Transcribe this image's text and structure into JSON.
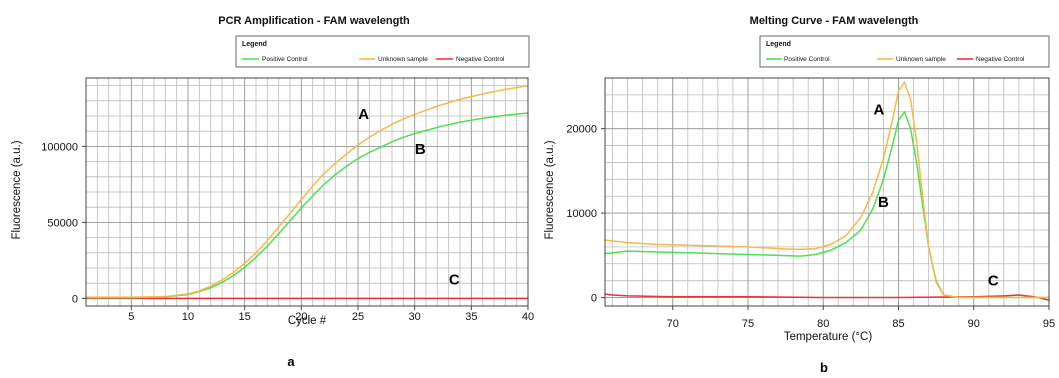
{
  "colors": {
    "positive": "#4fe04f",
    "unknown": "#f7b94a",
    "negative": "#e8333a"
  },
  "chart_data": [
    {
      "type": "line",
      "panel_label": "a",
      "title": "PCR Amplification - FAM wavelength",
      "xlabel": "Cycle #",
      "ylabel": "Fluorescence (a.u.)",
      "xlim": [
        1,
        40
      ],
      "ylim": [
        -5000,
        145000
      ],
      "xticks": [
        5,
        10,
        15,
        20,
        25,
        30,
        35,
        40
      ],
      "yticks": [
        0,
        50000,
        100000
      ],
      "ytick_labels": [
        "0",
        "50000",
        "100000"
      ],
      "grid": true,
      "legend": {
        "title": "Legend",
        "placement": "top",
        "entries": [
          "Positive Control",
          "Unknown sample",
          "Negative Control"
        ]
      },
      "annotations": [
        {
          "text": "A",
          "x": 25.5,
          "y": 118000
        },
        {
          "text": "B",
          "x": 30.5,
          "y": 95000
        },
        {
          "text": "C",
          "x": 33.5,
          "y": 9000
        }
      ],
      "series": [
        {
          "name": "Positive Control",
          "color_key": "positive",
          "x": [
            1,
            5,
            8,
            10,
            11,
            12,
            13,
            14,
            15,
            16,
            17,
            18,
            19,
            20,
            21,
            22,
            23,
            24,
            25,
            26,
            27,
            28,
            29,
            30,
            32,
            34,
            36,
            38,
            40
          ],
          "y": [
            500,
            500,
            1000,
            2500,
            4500,
            7000,
            10500,
            15000,
            20500,
            27000,
            34500,
            42500,
            51000,
            59500,
            67500,
            75000,
            81500,
            87000,
            92000,
            96000,
            99500,
            103000,
            106000,
            108500,
            112500,
            116000,
            118500,
            120500,
            122000
          ]
        },
        {
          "name": "Unknown sample",
          "color_key": "unknown",
          "x": [
            1,
            5,
            8,
            10,
            11,
            12,
            13,
            14,
            15,
            16,
            17,
            18,
            19,
            20,
            21,
            22,
            23,
            24,
            25,
            26,
            27,
            28,
            29,
            30,
            32,
            34,
            36,
            38,
            40
          ],
          "y": [
            800,
            800,
            1200,
            3000,
            5000,
            8000,
            12000,
            17000,
            23000,
            30000,
            38000,
            47000,
            56000,
            65000,
            74000,
            82000,
            89000,
            95000,
            101000,
            106000,
            110500,
            114500,
            118000,
            121000,
            126500,
            131000,
            134500,
            137500,
            140000
          ]
        },
        {
          "name": "Negative Control",
          "color_key": "negative",
          "x": [
            1,
            10,
            20,
            30,
            40
          ],
          "y": [
            0,
            0,
            0,
            0,
            0
          ]
        }
      ]
    },
    {
      "type": "line",
      "panel_label": "b",
      "title": "Melting Curve - FAM wavelength",
      "xlabel": "Temperature (°C)",
      "ylabel": "Fluorescence (a.u.)",
      "xlim": [
        65.5,
        95
      ],
      "ylim": [
        -1000,
        26000
      ],
      "xticks": [
        70,
        75,
        80,
        85,
        90,
        95
      ],
      "yticks": [
        0,
        10000,
        20000
      ],
      "ytick_labels": [
        "0",
        "10000",
        "20000"
      ],
      "grid": true,
      "legend": {
        "title": "Legend",
        "placement": "top",
        "entries": [
          "Positive Control",
          "Unknown sample",
          "Negative Control"
        ]
      },
      "annotations": [
        {
          "text": "A",
          "x": 83.7,
          "y": 21700
        },
        {
          "text": "B",
          "x": 84.0,
          "y": 10700
        },
        {
          "text": "C",
          "x": 91.3,
          "y": 1400
        }
      ],
      "series": [
        {
          "name": "Positive Control",
          "color_key": "positive",
          "x": [
            65.5,
            67,
            69,
            71,
            73,
            75,
            77,
            78.5,
            79.5,
            80.5,
            81.5,
            82.5,
            83.3,
            84,
            84.6,
            85,
            85.4,
            85.8,
            86.2,
            86.6,
            87,
            87.5,
            88,
            89,
            91,
            93,
            95
          ],
          "y": [
            5200,
            5500,
            5400,
            5300,
            5200,
            5100,
            5000,
            4900,
            5100,
            5600,
            6500,
            8000,
            10500,
            14000,
            18000,
            21000,
            22000,
            20000,
            16000,
            11000,
            6000,
            2000,
            300,
            0,
            0,
            0,
            0
          ]
        },
        {
          "name": "Unknown sample",
          "color_key": "unknown",
          "x": [
            65.5,
            67,
            69,
            71,
            73,
            75,
            77,
            78.5,
            79.5,
            80.5,
            81.5,
            82.5,
            83.3,
            84,
            84.6,
            85,
            85.4,
            85.8,
            86.2,
            86.6,
            87,
            87.5,
            88,
            89,
            91,
            93,
            95
          ],
          "y": [
            6800,
            6500,
            6300,
            6200,
            6100,
            6000,
            5800,
            5700,
            5800,
            6300,
            7300,
            9500,
            12500,
            16500,
            21000,
            24500,
            25500,
            23500,
            18500,
            12000,
            6000,
            1800,
            300,
            0,
            0,
            0,
            0
          ]
        },
        {
          "name": "Negative Control",
          "color_key": "negative",
          "x": [
            65.5,
            66,
            67,
            70,
            75,
            80,
            85,
            90,
            92,
            93,
            94,
            95
          ],
          "y": [
            400,
            300,
            200,
            100,
            100,
            0,
            0,
            100,
            200,
            300,
            100,
            -300
          ]
        }
      ]
    }
  ]
}
